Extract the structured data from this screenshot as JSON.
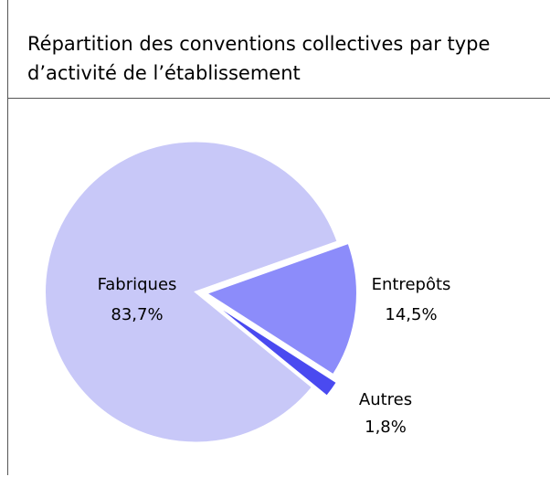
{
  "chart_data": {
    "type": "pie",
    "title_lines": [
      "Répartition des conventions collectives par type",
      "d’activité de l’établissement"
    ],
    "categories": [
      "Entrepôts",
      "Autres",
      "Fabriques"
    ],
    "values": [
      14.5,
      1.8,
      83.7
    ],
    "value_labels": [
      "14,5%",
      "1,8%",
      "83,7%"
    ],
    "colors": [
      "#8c8cfa",
      "#4a4af0",
      "#c8c8f8"
    ]
  }
}
